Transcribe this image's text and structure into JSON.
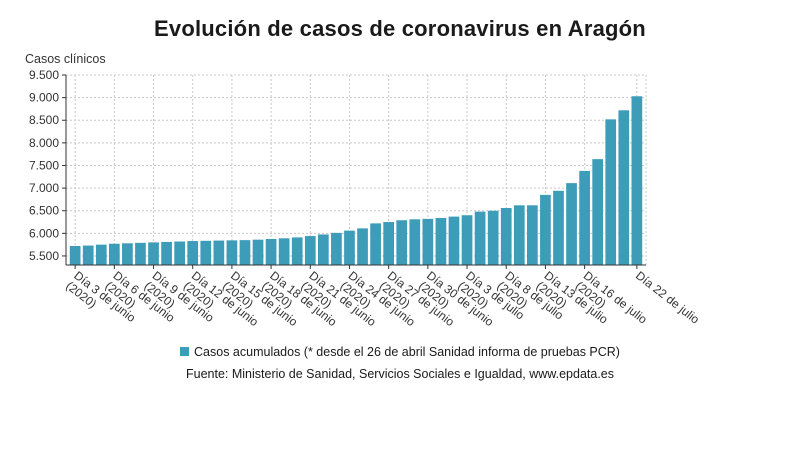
{
  "chart_data": {
    "type": "bar",
    "title": "Evolución de casos de coronavirus en Aragón",
    "ylabel": "Casos clínicos",
    "ylim": [
      5300,
      9500
    ],
    "yticks": [
      5500,
      6000,
      6500,
      7000,
      7500,
      8000,
      8500,
      9000,
      9500
    ],
    "ytick_labels": [
      "5.500",
      "6.000",
      "6.500",
      "7.000",
      "7.500",
      "8.000",
      "8.500",
      "9.000",
      "9.500"
    ],
    "grid": true,
    "color": "#3d9db8",
    "series": [
      {
        "name": "Casos acumulados (* desde el 26 de abril Sanidad informa de pruebas PCR)",
        "values": [
          5720,
          5730,
          5750,
          5770,
          5780,
          5790,
          5800,
          5810,
          5820,
          5830,
          5835,
          5840,
          5845,
          5850,
          5860,
          5875,
          5890,
          5910,
          5940,
          5975,
          6010,
          6060,
          6110,
          6220,
          6250,
          6290,
          6310,
          6320,
          6340,
          6370,
          6400,
          6480,
          6500,
          6560,
          6620,
          6620,
          6850,
          6940,
          7110,
          7380,
          7640,
          8520,
          8720,
          9030
        ]
      }
    ],
    "tick_labels": [
      {
        "index": 0,
        "line1": "Día 3 de junio",
        "line2": "(2020)"
      },
      {
        "index": 3,
        "line1": "Día 6 de junio",
        "line2": "(2020)"
      },
      {
        "index": 6,
        "line1": "Día 9 de junio",
        "line2": "(2020)"
      },
      {
        "index": 9,
        "line1": "Día 12 de junio",
        "line2": "(2020)"
      },
      {
        "index": 12,
        "line1": "Día 15 de junio",
        "line2": "(2020)"
      },
      {
        "index": 15,
        "line1": "Día 18 de junio",
        "line2": "(2020)"
      },
      {
        "index": 18,
        "line1": "Día 21 de junio",
        "line2": "(2020)"
      },
      {
        "index": 21,
        "line1": "Día 24 de junio",
        "line2": "(2020)"
      },
      {
        "index": 24,
        "line1": "Día 27 de junio",
        "line2": "(2020)"
      },
      {
        "index": 27,
        "line1": "Día 30 de junio",
        "line2": "(2020)"
      },
      {
        "index": 30,
        "line1": "Día 3 de julio",
        "line2": "(2020)"
      },
      {
        "index": 33,
        "line1": "Día 8 de julio",
        "line2": "(2020)"
      },
      {
        "index": 36,
        "line1": "Día 13 de julio",
        "line2": "(2020)"
      },
      {
        "index": 39,
        "line1": "Día 16 de julio",
        "line2": "(2020)"
      },
      {
        "index": 43,
        "line1": "Día 22 de julio",
        "line2": ""
      }
    ]
  },
  "legend_label": "Casos acumulados (* desde el 26 de abril Sanidad informa de pruebas PCR)",
  "source": "Fuente: Ministerio de Sanidad, Servicios Sociales e Igualdad, www.epdata.es"
}
